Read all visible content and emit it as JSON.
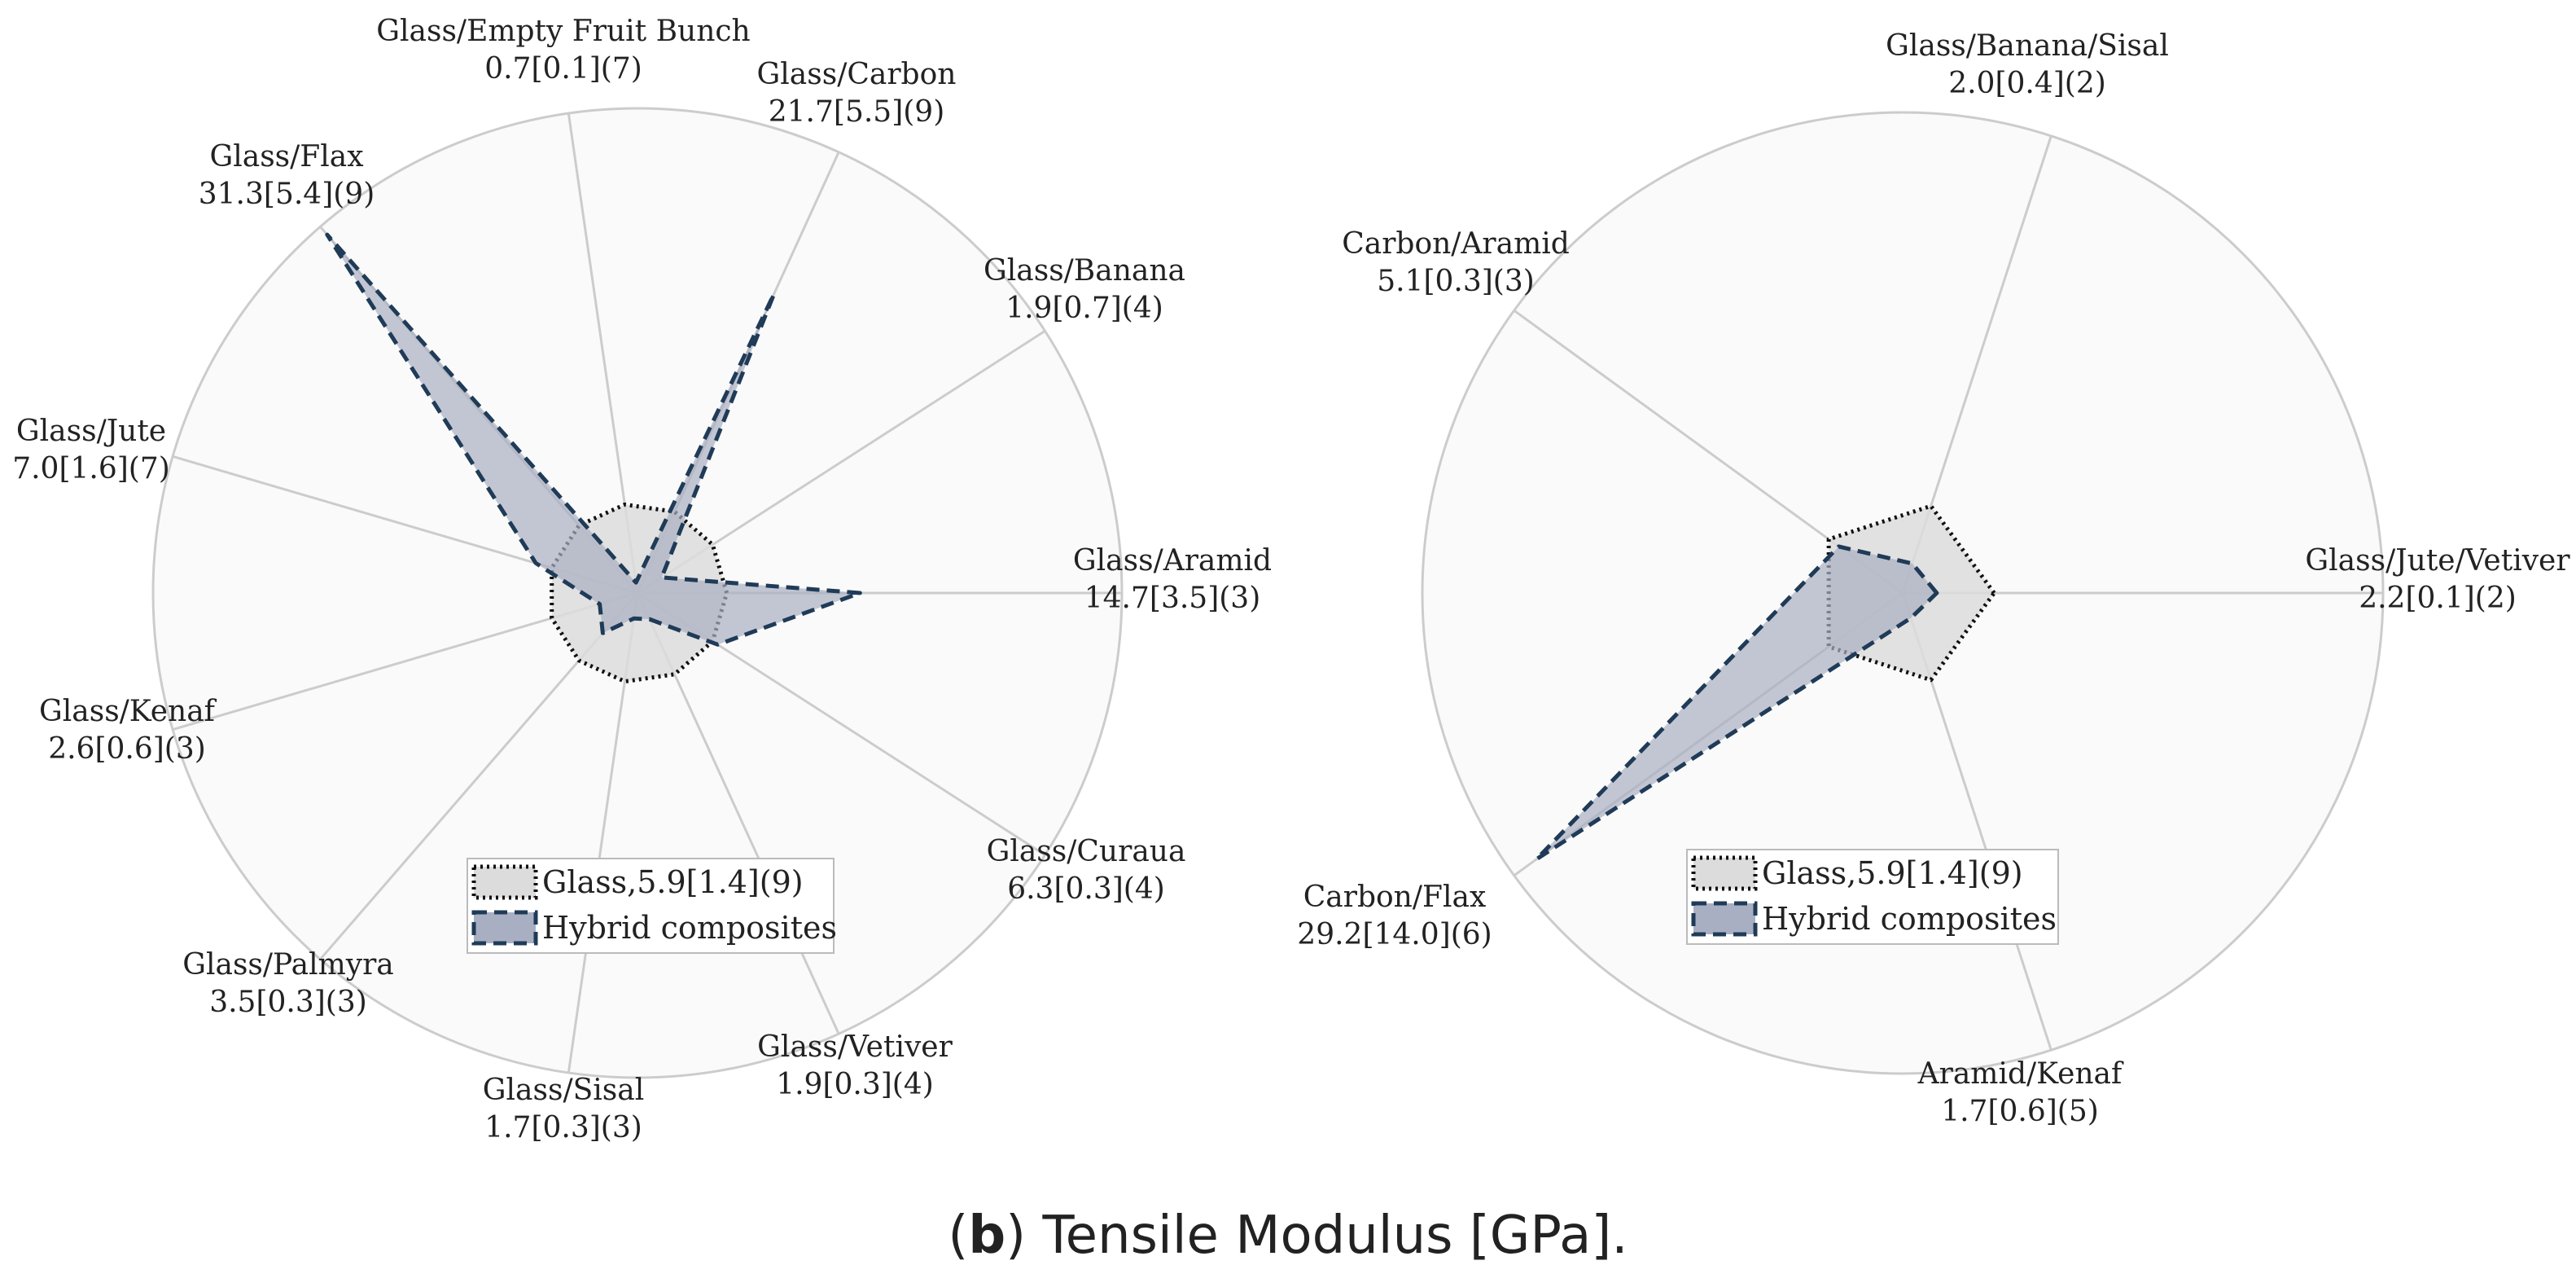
{
  "caption": {
    "prefix": "(",
    "letter": "b",
    "text": ") Tensile Modulus [GPa]."
  },
  "colors": {
    "background": "#ffffff",
    "disc": "#fafafa",
    "grid": "#cccccc",
    "glass_fill": "#dcdcdc",
    "glass_line": "#111111",
    "hybrid_fill": "#a9afc2",
    "hybrid_line": "#1f3b57"
  },
  "chart_data": [
    {
      "type": "radar",
      "title": "",
      "rmax": 32,
      "legend": {
        "glass": "Glass,5.9[1.4](9)",
        "hybrid": "Hybrid composites",
        "placement": "bottom-center"
      },
      "axes": [
        {
          "name": "Glass/Aramid",
          "stats": "14.7[3.5](3)",
          "value": 14.7
        },
        {
          "name": "Glass/Banana",
          "stats": "1.9[0.7](4)",
          "value": 1.9
        },
        {
          "name": "Glass/Carbon",
          "stats": "21.7[5.5](9)",
          "value": 21.7
        },
        {
          "name": "Glass/Empty Fruit Bunch",
          "stats": "0.7[0.1](7)",
          "value": 0.7
        },
        {
          "name": "Glass/Flax",
          "stats": "31.3[5.4](9)",
          "value": 31.3
        },
        {
          "name": "Glass/Jute",
          "stats": "7.0[1.6](7)",
          "value": 7.0
        },
        {
          "name": "Glass/Kenaf",
          "stats": "2.6[0.6](3)",
          "value": 2.6
        },
        {
          "name": "Glass/Palmyra",
          "stats": "3.5[0.3](3)",
          "value": 3.5
        },
        {
          "name": "Glass/Sisal",
          "stats": "1.7[0.3](3)",
          "value": 1.7
        },
        {
          "name": "Glass/Vetiver",
          "stats": "1.9[0.3](4)",
          "value": 1.9
        },
        {
          "name": "Glass/Curaua",
          "stats": "6.3[0.3](4)",
          "value": 6.3
        }
      ],
      "series": [
        {
          "name": "Glass",
          "values": [
            5.9,
            5.9,
            5.9,
            5.9,
            5.9,
            5.9,
            5.9,
            5.9,
            5.9,
            5.9,
            5.9
          ]
        },
        {
          "name": "Hybrid composites",
          "values": [
            14.7,
            1.9,
            21.7,
            0.7,
            31.3,
            7.0,
            2.6,
            3.5,
            1.7,
            1.9,
            6.3
          ]
        }
      ]
    },
    {
      "type": "radar",
      "title": "",
      "rmax": 31,
      "legend": {
        "glass": "Glass,5.9[1.4](9)",
        "hybrid": "Hybrid composites",
        "placement": "bottom-center"
      },
      "axes": [
        {
          "name": "Glass/Jute/Vetiver",
          "stats": "2.2[0.1](2)",
          "value": 2.2
        },
        {
          "name": "Glass/Banana/Sisal",
          "stats": "2.0[0.4](2)",
          "value": 2.0
        },
        {
          "name": "Carbon/Aramid",
          "stats": "5.1[0.3](3)",
          "value": 5.1
        },
        {
          "name": "Carbon/Flax",
          "stats": "29.2[14.0](6)",
          "value": 29.2
        },
        {
          "name": "Aramid/Kenaf",
          "stats": "1.7[0.6](5)",
          "value": 1.7
        }
      ],
      "series": [
        {
          "name": "Glass",
          "values": [
            5.9,
            5.9,
            5.9,
            5.9,
            5.9
          ]
        },
        {
          "name": "Hybrid composites",
          "values": [
            2.2,
            2.0,
            5.1,
            29.2,
            1.7
          ]
        }
      ]
    }
  ]
}
